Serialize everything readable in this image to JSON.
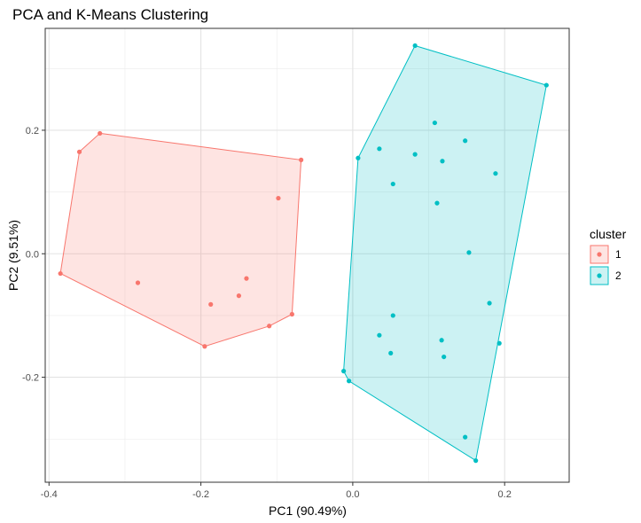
{
  "chart_data": {
    "type": "scatter",
    "title": "PCA and K-Means Clustering",
    "xlabel": "PC1 (90.49%)",
    "ylabel": "PC2 (9.51%)",
    "xlim": [
      -0.405,
      0.285
    ],
    "ylim": [
      -0.37,
      0.365
    ],
    "x_ticks": [
      -0.4,
      -0.2,
      0.0,
      0.2
    ],
    "x_tick_labels": [
      "-0.4",
      "-0.2",
      "0.0",
      "0.2"
    ],
    "y_ticks": [
      -0.2,
      0.0,
      0.2
    ],
    "y_tick_labels": [
      "-0.2",
      "0.0",
      "0.2"
    ],
    "grid": true,
    "legend": {
      "title": "cluster",
      "placement": "right",
      "entries": [
        "1",
        "2"
      ]
    },
    "series": [
      {
        "name": "1",
        "color": "#F8766D",
        "points": [
          [
            -0.333,
            0.195
          ],
          [
            -0.36,
            0.165
          ],
          [
            -0.068,
            0.152
          ],
          [
            -0.098,
            0.09
          ],
          [
            -0.385,
            -0.032
          ],
          [
            -0.283,
            -0.047
          ],
          [
            -0.14,
            -0.04
          ],
          [
            -0.15,
            -0.068
          ],
          [
            -0.187,
            -0.082
          ],
          [
            -0.08,
            -0.098
          ],
          [
            -0.11,
            -0.117
          ],
          [
            -0.195,
            -0.15
          ]
        ],
        "hull": [
          [
            -0.333,
            0.195
          ],
          [
            -0.068,
            0.152
          ],
          [
            -0.08,
            -0.098
          ],
          [
            -0.11,
            -0.117
          ],
          [
            -0.195,
            -0.15
          ],
          [
            -0.385,
            -0.032
          ],
          [
            -0.36,
            0.165
          ]
        ]
      },
      {
        "name": "2",
        "color": "#00BFC4",
        "points": [
          [
            0.082,
            0.337
          ],
          [
            0.255,
            0.273
          ],
          [
            0.108,
            0.212
          ],
          [
            0.148,
            0.183
          ],
          [
            0.035,
            0.17
          ],
          [
            0.082,
            0.161
          ],
          [
            0.118,
            0.15
          ],
          [
            0.007,
            0.155
          ],
          [
            0.188,
            0.13
          ],
          [
            0.053,
            0.113
          ],
          [
            0.111,
            0.082
          ],
          [
            0.153,
            0.002
          ],
          [
            0.18,
            -0.08
          ],
          [
            0.053,
            -0.1
          ],
          [
            0.035,
            -0.132
          ],
          [
            0.117,
            -0.14
          ],
          [
            0.193,
            -0.145
          ],
          [
            0.05,
            -0.161
          ],
          [
            0.12,
            -0.167
          ],
          [
            -0.012,
            -0.19
          ],
          [
            -0.005,
            -0.206
          ],
          [
            0.148,
            -0.297
          ],
          [
            0.162,
            -0.335
          ]
        ],
        "hull": [
          [
            0.082,
            0.337
          ],
          [
            0.255,
            0.273
          ],
          [
            0.162,
            -0.335
          ],
          [
            -0.005,
            -0.206
          ],
          [
            -0.012,
            -0.19
          ],
          [
            0.007,
            0.155
          ]
        ]
      }
    ]
  }
}
